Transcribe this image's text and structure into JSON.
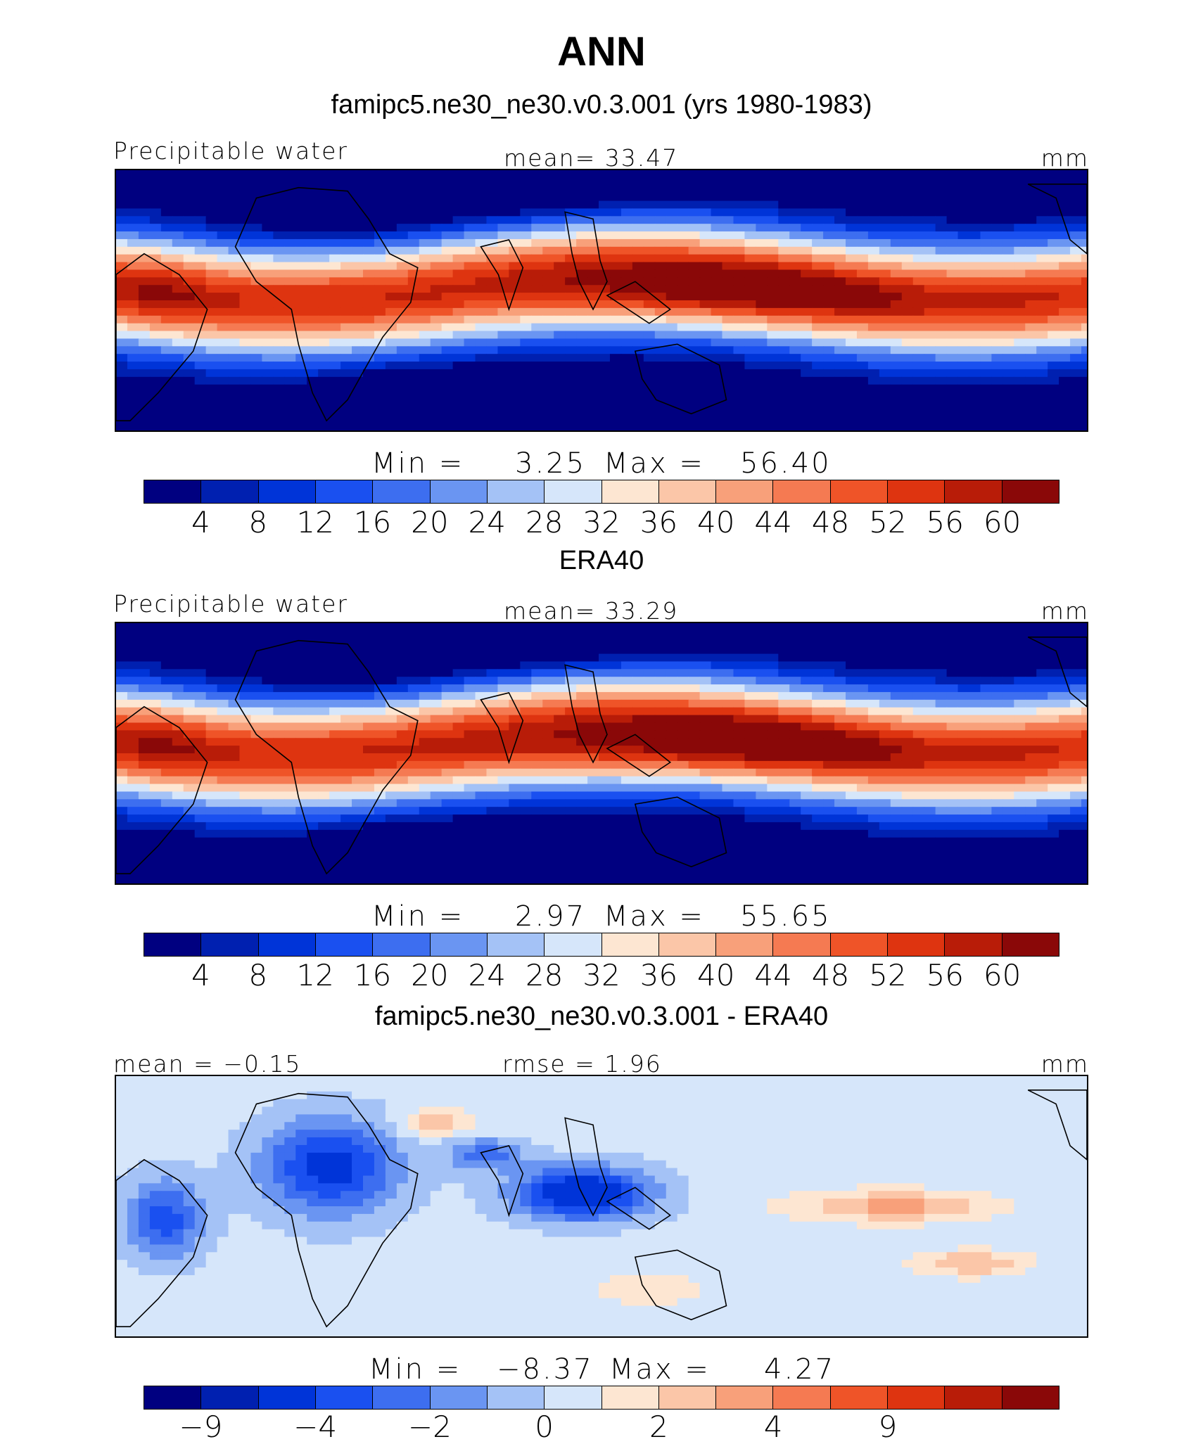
{
  "title": "ANN",
  "subtitle": "famipc5.ne30_ne30.v0.3.001 (yrs 1980-1983)",
  "colors": [
    "#000080",
    "#0020b0",
    "#0034d8",
    "#1a50f0",
    "#3d6ef0",
    "#6a95f2",
    "#a4c2f6",
    "#d6e6fa",
    "#fde6d2",
    "#fbc6a8",
    "#f8a07a",
    "#f57a52",
    "#ef5428",
    "#de3410",
    "#b81c08",
    "#8a0808"
  ],
  "panels": [
    {
      "id": "model",
      "heading": "",
      "variable": "Precipitable water",
      "stat": "mean=  33.47",
      "units": "mm",
      "min_label": "Min  =",
      "min_value": "3.25",
      "max_label": "Max  =",
      "max_value": "56.40",
      "ticks": [
        "4",
        "8",
        "12",
        "16",
        "20",
        "24",
        "28",
        "32",
        "36",
        "40",
        "44",
        "48",
        "52",
        "56",
        "60"
      ]
    },
    {
      "id": "obs",
      "heading": "ERA40",
      "variable": "Precipitable water",
      "stat": "mean=  33.29",
      "units": "mm",
      "min_label": "Min  =",
      "min_value": "2.97",
      "max_label": "Max  =",
      "max_value": "55.65",
      "ticks": [
        "4",
        "8",
        "12",
        "16",
        "20",
        "24",
        "28",
        "32",
        "36",
        "40",
        "44",
        "48",
        "52",
        "56",
        "60"
      ]
    },
    {
      "id": "diff",
      "heading": "famipc5.ne30_ne30.v0.3.001 - ERA40",
      "variable": "mean =  −0.15",
      "stat": "rmse =   1.96",
      "units": "mm",
      "min_label": "Min  =",
      "min_value": "−8.37",
      "max_label": "Max  =",
      "max_value": "4.27",
      "ticks": [
        "−9",
        "",
        "−4",
        "",
        "−2",
        "",
        "0",
        "",
        "2",
        "",
        "4",
        "",
        "9",
        "",
        "",
        ""
      ]
    }
  ]
}
